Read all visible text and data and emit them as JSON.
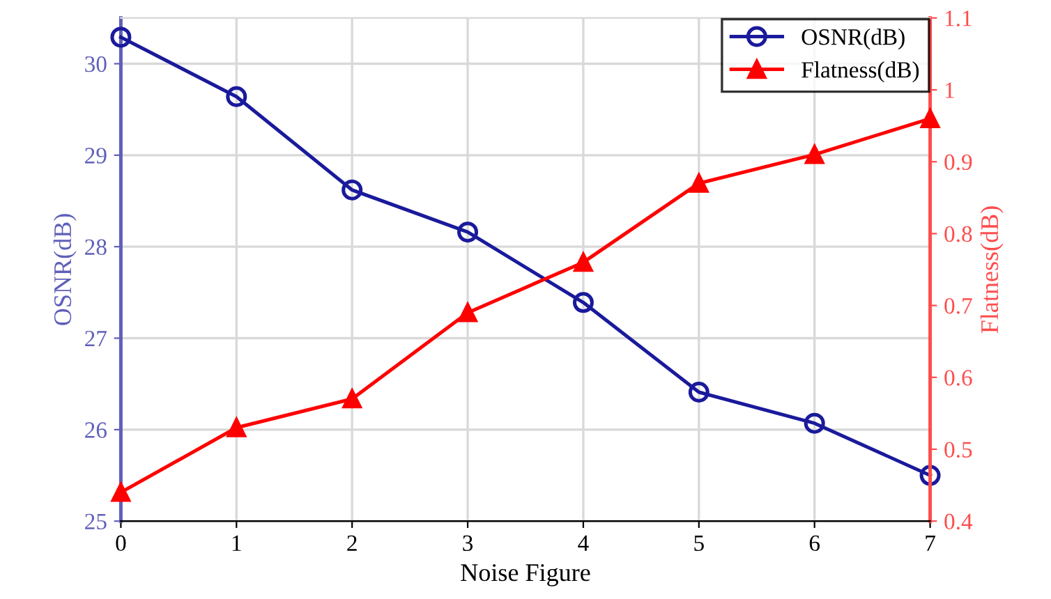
{
  "chart_data": {
    "type": "line",
    "xlabel": "Noise Figure",
    "ylabel": "OSNR(dB)",
    "y2label": "Flatness(dB)",
    "x": [
      0,
      1,
      2,
      3,
      4,
      5,
      6,
      7
    ],
    "series": [
      {
        "name": "OSNR(dB)",
        "color": "#1a1a9c",
        "marker": "circle",
        "values": [
          30.29,
          29.64,
          28.62,
          28.16,
          27.39,
          26.41,
          26.07,
          25.5
        ]
      },
      {
        "name": "Flatness(dB)",
        "color": "#ff0000",
        "marker": "triangle",
        "axis": "y2",
        "values": [
          0.44,
          0.53,
          0.57,
          0.69,
          0.76,
          0.87,
          0.91,
          0.96
        ]
      }
    ],
    "xlim": [
      0,
      7
    ],
    "xticks": [
      0,
      1,
      2,
      3,
      4,
      5,
      6,
      7
    ],
    "ylim": [
      25,
      30.5
    ],
    "yticks": [
      25,
      26,
      27,
      28,
      29,
      30
    ],
    "y2lim": [
      0.4,
      1.1
    ],
    "y2ticks": [
      0.4,
      0.5,
      0.6,
      0.7,
      0.8,
      0.9,
      1,
      1.1
    ],
    "grid": true,
    "legend": "top right",
    "line_style": "solid"
  }
}
